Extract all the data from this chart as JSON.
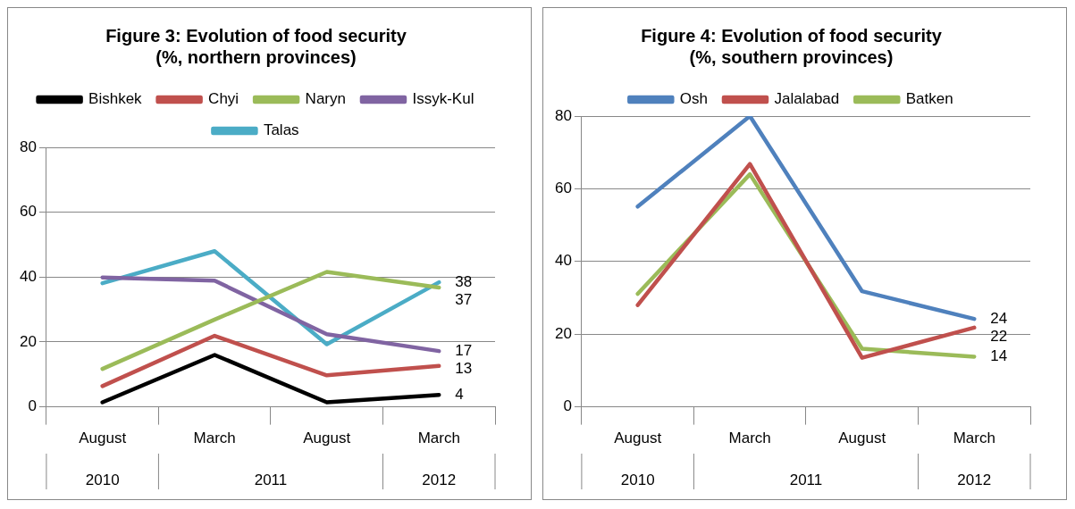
{
  "chart_data": [
    {
      "type": "line",
      "title": "Figure 3: Evolution of food security (%, northern provinces)",
      "categories": [
        "August",
        "March",
        "August",
        "March"
      ],
      "annotations": [
        "2010",
        "2011",
        "2012"
      ],
      "ylim": [
        0,
        80
      ],
      "yticks": [
        0,
        20,
        40,
        60,
        80
      ],
      "grid": "y",
      "legend": "top",
      "marker": "none",
      "line_style": "solid",
      "series": [
        {
          "name": "Bishkek",
          "color": "#000000",
          "values": [
            1.4,
            16,
            1.4,
            3.7
          ],
          "value_labels": [
            null,
            null,
            null,
            "4"
          ]
        },
        {
          "name": "Chyi",
          "color": "#c0504d",
          "values": [
            6.4,
            21.9,
            9.7,
            12.6
          ],
          "value_labels": [
            null,
            null,
            null,
            "13"
          ]
        },
        {
          "name": "Naryn",
          "color": "#9bbb59",
          "values": [
            11.7,
            26.9,
            41.6,
            36.8
          ],
          "value_labels": [
            null,
            null,
            null,
            "37"
          ]
        },
        {
          "name": "Issyk-Kul",
          "color": "#8064a2",
          "values": [
            39.9,
            38.9,
            22.4,
            17.2
          ],
          "value_labels": [
            null,
            null,
            null,
            "17"
          ]
        },
        {
          "name": "Talas",
          "color": "#4bacc6",
          "values": [
            38.1,
            48,
            19.3,
            38.4
          ],
          "value_labels": [
            null,
            null,
            null,
            "38"
          ]
        }
      ]
    },
    {
      "type": "line",
      "title": "Figure 4: Evolution of food security (%, southern provinces)",
      "categories": [
        "August",
        "March",
        "August",
        "March"
      ],
      "annotations": [
        "2010",
        "2011",
        "2012"
      ],
      "ylim": [
        0,
        80
      ],
      "yticks": [
        0,
        20,
        40,
        60,
        80
      ],
      "grid": "y",
      "legend": "top",
      "marker": "none",
      "line_style": "solid",
      "series": [
        {
          "name": "Osh",
          "color": "#4f81bd",
          "values": [
            55.1,
            80,
            31.8,
            24.2
          ],
          "value_labels": [
            null,
            null,
            null,
            "24"
          ]
        },
        {
          "name": "Jalalabad",
          "color": "#c0504d",
          "values": [
            28,
            66.8,
            13.5,
            21.8
          ],
          "value_labels": [
            null,
            null,
            null,
            "22"
          ]
        },
        {
          "name": "Batken",
          "color": "#9bbb59",
          "values": [
            31.1,
            64,
            16,
            13.8
          ],
          "value_labels": [
            null,
            null,
            null,
            "14"
          ]
        }
      ]
    }
  ]
}
